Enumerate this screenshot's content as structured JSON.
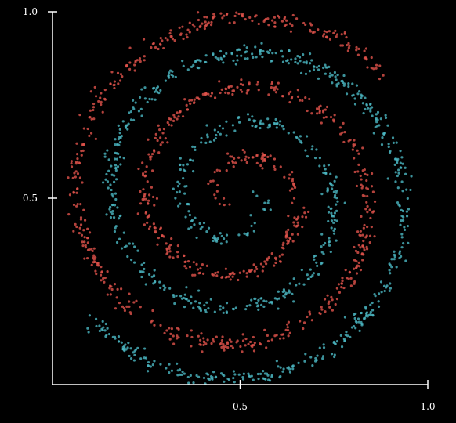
{
  "chart_data": {
    "type": "scatter",
    "title": "",
    "xlabel": "",
    "ylabel": "",
    "xlim": [
      0.0,
      1.0
    ],
    "ylim": [
      0.0,
      1.0
    ],
    "xticks": [
      {
        "value": 0.5,
        "label": "0.5"
      },
      {
        "value": 1.0,
        "label": "1.0"
      }
    ],
    "yticks": [
      {
        "value": 0.5,
        "label": "0.5"
      },
      {
        "value": 1.0,
        "label": "1.0"
      }
    ],
    "grid": false,
    "legend": "none",
    "background": "#000000",
    "axis_color": "#ffffff",
    "series": [
      {
        "color": "#e0524b",
        "points_approx": 900,
        "shape": "spiral",
        "spiral": {
          "center": [
            0.5,
            0.5
          ],
          "start_radius": 0.03,
          "end_radius": 0.51,
          "turns": 2.55,
          "start_angle_deg": 238,
          "noise": 0.011
        }
      },
      {
        "color": "#4bb6c2",
        "points_approx": 900,
        "shape": "spiral",
        "spiral": {
          "center": [
            0.5,
            0.5
          ],
          "start_radius": 0.03,
          "end_radius": 0.51,
          "turns": 2.55,
          "start_angle_deg": 58,
          "noise": 0.011
        }
      }
    ]
  }
}
